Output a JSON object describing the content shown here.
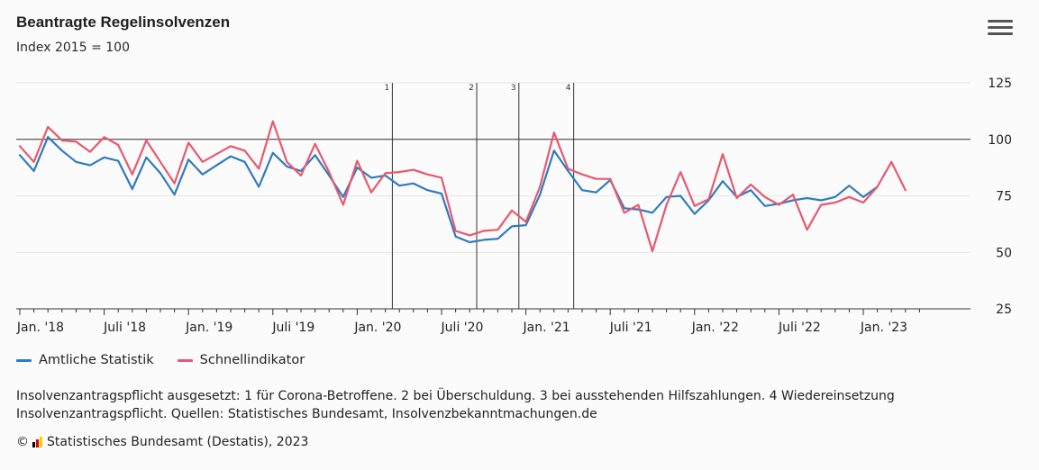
{
  "header": {
    "title": "Beantragte Regelinsolvenzen",
    "subtitle": "Index 2015 = 100",
    "menu_icon": "hamburger-menu-icon"
  },
  "legend": {
    "items": [
      {
        "label": "Amtliche Statistik",
        "color": "#2f7bbf"
      },
      {
        "label": "Schnellindikator",
        "color": "#e8586e"
      }
    ]
  },
  "footnote": "Insolvenzantragspflicht ausgesetzt: 1 für Corona-Betroffene. 2 bei Überschuldung. 3 bei ausstehenden Hilfszahlungen. 4 Wiedereinsetzung Insolvenzantragspflicht. Quellen: Statistisches Bundesamt, Insolvenzbekanntmachungen.de",
  "copyright": {
    "symbol": "©",
    "text": "Statistisches Bundesamt (Destatis), 2023",
    "logo_colors": [
      "#000000",
      "#dd0000",
      "#ffcc00"
    ]
  },
  "chart_data": {
    "type": "line",
    "x_labels": [
      "Jan. '18",
      "Juli '18",
      "Jan. '19",
      "Juli '19",
      "Jan. '20",
      "Juli '20",
      "Jan. '21",
      "Juli '21",
      "Jan. '22",
      "Juli '22",
      "Jan. '23"
    ],
    "x_label_month_index": [
      0,
      6,
      12,
      18,
      24,
      30,
      36,
      42,
      48,
      54,
      60
    ],
    "month_start": "2018-01",
    "y_ticks": [
      25,
      50,
      75,
      100,
      125
    ],
    "ylim": [
      25,
      125
    ],
    "reference_line": 100,
    "grid": true,
    "legend_position": "bottom-left",
    "events": [
      {
        "label": "1",
        "month_index": 26.5
      },
      {
        "label": "2",
        "month_index": 32.5
      },
      {
        "label": "3",
        "month_index": 35.5
      },
      {
        "label": "4",
        "month_index": 39.4
      }
    ],
    "series": [
      {
        "name": "Amtliche Statistik",
        "color": "#2f7bbf",
        "values": [
          93,
          86,
          101,
          95,
          90,
          88.5,
          92,
          90.5,
          78,
          92,
          85,
          75.5,
          91,
          84.5,
          88.5,
          92.5,
          90,
          79,
          94,
          88,
          86,
          93,
          84,
          74.5,
          87.5,
          83,
          84,
          79.5,
          80.5,
          77.5,
          76,
          57,
          54.5,
          55.5,
          56,
          61.5,
          62,
          75.5,
          95,
          86,
          77.5,
          76.5,
          82,
          69.5,
          69,
          67.5,
          74.5,
          75,
          67,
          73,
          81.5,
          74.5,
          77.5,
          70.5,
          71.5,
          73,
          74,
          73,
          74.5,
          79.5,
          74.5,
          79
        ]
      },
      {
        "name": "Schnellindikator",
        "color": "#e8586e",
        "values": [
          97,
          90,
          105.5,
          99.5,
          99,
          94.5,
          101,
          97.5,
          84.5,
          99.5,
          90,
          80.5,
          98.5,
          90,
          93.5,
          97,
          95,
          87,
          108,
          90,
          84,
          98,
          85.5,
          71,
          90.5,
          76.5,
          85,
          85.5,
          86.5,
          84.5,
          83,
          59.5,
          57.5,
          59.5,
          60,
          68.5,
          63.5,
          79,
          103,
          87,
          84.5,
          82.5,
          82.5,
          67.5,
          71,
          50.5,
          71,
          85.5,
          70.5,
          73.5,
          93.5,
          74,
          80,
          74.5,
          71,
          75.5,
          60,
          71,
          72,
          74.5,
          72,
          79,
          90,
          77.5
        ]
      }
    ]
  }
}
